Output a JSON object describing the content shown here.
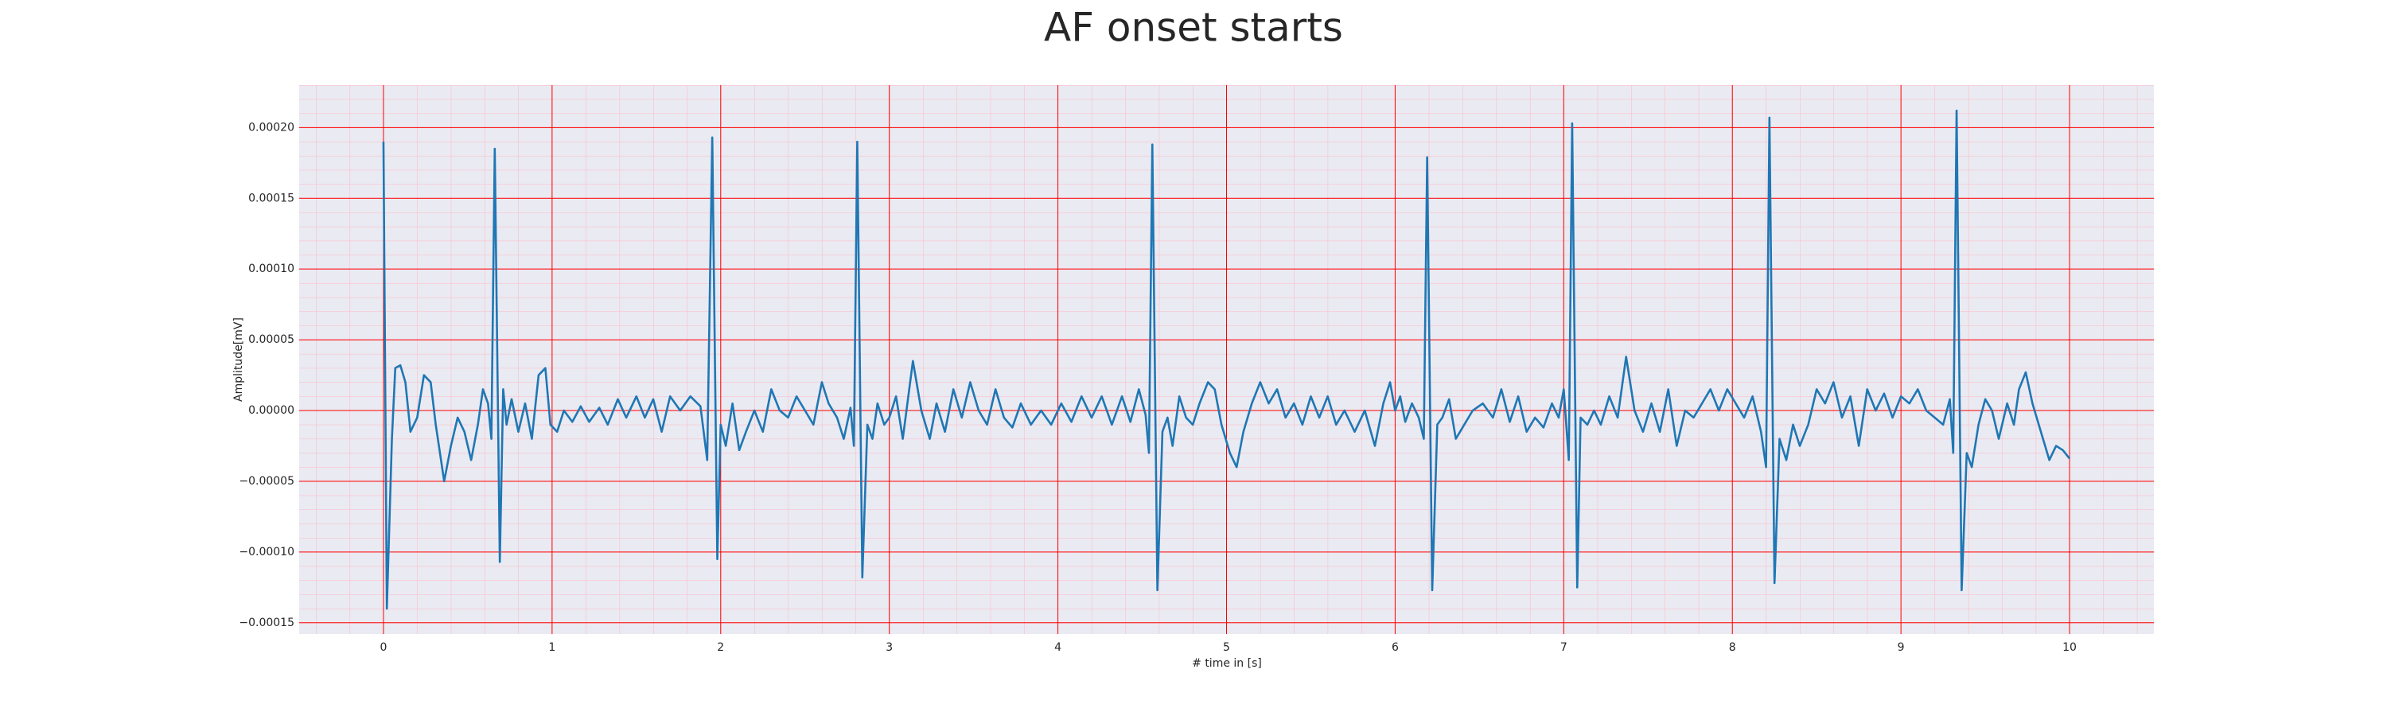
{
  "chart_data": {
    "type": "line",
    "title": "AF onset starts",
    "xlabel": "# time in [s]",
    "ylabel": "Amplitude[mV]",
    "color": "#1f77b4",
    "grid": true,
    "minor_grid": true,
    "grid_color": "#ff0000",
    "minor_grid_color": "#ffb6c1",
    "background": "#eaeaf2",
    "xlim": [
      -0.5,
      10.5
    ],
    "ylim": [
      -0.000158,
      0.00023
    ],
    "xticks": [
      0,
      1,
      2,
      3,
      4,
      5,
      6,
      7,
      8,
      9,
      10
    ],
    "yticks": [
      {
        "value": -0.00015,
        "label": "−0.00015"
      },
      {
        "value": -0.0001,
        "label": "−0.00010"
      },
      {
        "value": -5e-05,
        "label": "−0.00005"
      },
      {
        "value": 0,
        "label": "0.00000"
      },
      {
        "value": 5e-05,
        "label": "0.00005"
      },
      {
        "value": 0.0001,
        "label": "0.00010"
      },
      {
        "value": 0.00015,
        "label": "0.00015"
      },
      {
        "value": 0.0002,
        "label": "0.00020"
      }
    ],
    "x": [
      0,
      0.02,
      0.05,
      0.07,
      0.1,
      0.13,
      0.16,
      0.2,
      0.24,
      0.28,
      0.31,
      0.36,
      0.4,
      0.44,
      0.48,
      0.52,
      0.56,
      0.59,
      0.62,
      0.64,
      0.66,
      0.69,
      0.71,
      0.73,
      0.76,
      0.8,
      0.84,
      0.88,
      0.92,
      0.96,
      0.99,
      1.03,
      1.07,
      1.12,
      1.17,
      1.22,
      1.28,
      1.33,
      1.39,
      1.44,
      1.5,
      1.55,
      1.6,
      1.65,
      1.7,
      1.76,
      1.82,
      1.88,
      1.92,
      1.95,
      1.98,
      2.0,
      2.03,
      2.07,
      2.11,
      2.15,
      2.2,
      2.25,
      2.3,
      2.35,
      2.4,
      2.45,
      2.5,
      2.55,
      2.6,
      2.64,
      2.69,
      2.73,
      2.77,
      2.79,
      2.81,
      2.84,
      2.87,
      2.9,
      2.93,
      2.97,
      3.0,
      3.04,
      3.08,
      3.14,
      3.19,
      3.24,
      3.28,
      3.33,
      3.38,
      3.43,
      3.48,
      3.53,
      3.58,
      3.63,
      3.68,
      3.73,
      3.78,
      3.84,
      3.9,
      3.96,
      4.02,
      4.08,
      4.14,
      4.2,
      4.26,
      4.32,
      4.38,
      4.43,
      4.48,
      4.52,
      4.54,
      4.56,
      4.59,
      4.62,
      4.65,
      4.68,
      4.72,
      4.76,
      4.8,
      4.84,
      4.89,
      4.93,
      4.97,
      5.02,
      5.06,
      5.1,
      5.15,
      5.2,
      5.25,
      5.3,
      5.35,
      5.4,
      5.45,
      5.5,
      5.55,
      5.6,
      5.65,
      5.7,
      5.76,
      5.82,
      5.88,
      5.93,
      5.97,
      6.0,
      6.03,
      6.06,
      6.1,
      6.14,
      6.17,
      6.19,
      6.22,
      6.25,
      6.28,
      6.32,
      6.36,
      6.41,
      6.46,
      6.52,
      6.58,
      6.63,
      6.68,
      6.73,
      6.78,
      6.83,
      6.88,
      6.93,
      6.97,
      7.0,
      7.03,
      7.05,
      7.08,
      7.1,
      7.14,
      7.18,
      7.22,
      7.27,
      7.32,
      7.37,
      7.42,
      7.47,
      7.52,
      7.57,
      7.62,
      7.67,
      7.72,
      7.77,
      7.82,
      7.87,
      7.92,
      7.97,
      8.02,
      8.07,
      8.12,
      8.17,
      8.2,
      8.22,
      8.25,
      8.28,
      8.32,
      8.36,
      8.4,
      8.45,
      8.5,
      8.55,
      8.6,
      8.65,
      8.7,
      8.75,
      8.8,
      8.85,
      8.9,
      8.95,
      9.0,
      9.05,
      9.1,
      9.15,
      9.2,
      9.25,
      9.29,
      9.31,
      9.33,
      9.36,
      9.39,
      9.42,
      9.46,
      9.5,
      9.54,
      9.58,
      9.63,
      9.67,
      9.7,
      9.74,
      9.78,
      9.83,
      9.88,
      9.92,
      9.96,
      10.0
    ],
    "values": [
      0.00019,
      -0.00014,
      -2e-05,
      3e-05,
      3.2e-05,
      2e-05,
      -1.5e-05,
      -5e-06,
      2.5e-05,
      2e-05,
      -1e-05,
      -5e-05,
      -2.5e-05,
      -5e-06,
      -1.5e-05,
      -3.5e-05,
      -1e-05,
      1.5e-05,
      5e-06,
      -2e-05,
      0.000185,
      -0.000107,
      1.5e-05,
      -1e-05,
      8e-06,
      -1.5e-05,
      5e-06,
      -2e-05,
      2.5e-05,
      3e-05,
      -1e-05,
      -1.5e-05,
      0,
      -8e-06,
      3e-06,
      -8e-06,
      2e-06,
      -1e-05,
      8e-06,
      -5e-06,
      1e-05,
      -5e-06,
      8e-06,
      -1.5e-05,
      1e-05,
      0,
      1e-05,
      3e-06,
      -3.5e-05,
      0.000193,
      -0.000105,
      -1e-05,
      -2.5e-05,
      5e-06,
      -2.8e-05,
      -1.5e-05,
      0,
      -1.5e-05,
      1.5e-05,
      0,
      -5e-06,
      1e-05,
      0,
      -1e-05,
      2e-05,
      5e-06,
      -5e-06,
      -2e-05,
      2e-06,
      -2.5e-05,
      0.00019,
      -0.000118,
      -1e-05,
      -2e-05,
      5e-06,
      -1e-05,
      -5e-06,
      1e-05,
      -2e-05,
      3.5e-05,
      0,
      -2e-05,
      5e-06,
      -1.5e-05,
      1.5e-05,
      -5e-06,
      2e-05,
      0,
      -1e-05,
      1.5e-05,
      -5e-06,
      -1.2e-05,
      5e-06,
      -1e-05,
      0,
      -1e-05,
      5e-06,
      -8e-06,
      1e-05,
      -5e-06,
      1e-05,
      -1e-05,
      1e-05,
      -8e-06,
      1.5e-05,
      -3e-06,
      -3e-05,
      0.000188,
      -0.000127,
      -1.5e-05,
      -5e-06,
      -2.5e-05,
      1e-05,
      -5e-06,
      -1e-05,
      5e-06,
      2e-05,
      1.5e-05,
      -1e-05,
      -3e-05,
      -4e-05,
      -1.5e-05,
      5e-06,
      2e-05,
      5e-06,
      1.5e-05,
      -5e-06,
      5e-06,
      -1e-05,
      1e-05,
      -5e-06,
      1e-05,
      -1e-05,
      0,
      -1.5e-05,
      0,
      -2.5e-05,
      5e-06,
      2e-05,
      0,
      1e-05,
      -8e-06,
      5e-06,
      -5e-06,
      -2e-05,
      0.000179,
      -0.000127,
      -1e-05,
      -5e-06,
      8e-06,
      -2e-05,
      -1e-05,
      0,
      5e-06,
      -5e-06,
      1.5e-05,
      -8e-06,
      1e-05,
      -1.5e-05,
      -5e-06,
      -1.2e-05,
      5e-06,
      -5e-06,
      1.5e-05,
      -3.5e-05,
      0.000203,
      -0.000125,
      -5e-06,
      -1e-05,
      0,
      -1e-05,
      1e-05,
      -5e-06,
      3.8e-05,
      0,
      -1.5e-05,
      5e-06,
      -1.5e-05,
      1.5e-05,
      -2.5e-05,
      0,
      -5e-06,
      5e-06,
      1.5e-05,
      0,
      1.5e-05,
      5e-06,
      -5e-06,
      1e-05,
      -1.5e-05,
      -4e-05,
      0.000207,
      -0.000122,
      -2e-05,
      -3.5e-05,
      -1e-05,
      -2.5e-05,
      -1e-05,
      1.5e-05,
      5e-06,
      2e-05,
      -5e-06,
      1e-05,
      -2.5e-05,
      1.5e-05,
      0,
      1.2e-05,
      -5e-06,
      1e-05,
      5e-06,
      1.5e-05,
      0,
      -5e-06,
      -1e-05,
      8e-06,
      -3e-05,
      0.000212,
      -0.000127,
      -3e-05,
      -4e-05,
      -1e-05,
      8e-06,
      0,
      -2e-05,
      5e-06,
      -1e-05,
      1.5e-05,
      2.7e-05,
      5e-06,
      -1.5e-05,
      -3.5e-05,
      -2.5e-05,
      -2.8e-05,
      -3.4e-05
    ]
  }
}
